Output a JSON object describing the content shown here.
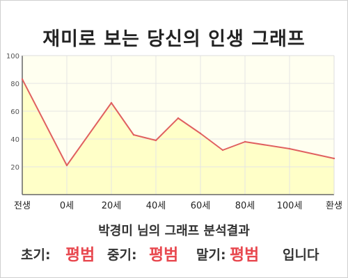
{
  "title": "재미로 보는 당신의 인생 그래프",
  "summary": "박경미 님의 그래프 분석결과",
  "results": {
    "early_label": "초기:",
    "early_value": "평범",
    "middle_label": "중기:",
    "middle_value": "평범",
    "late_label": "말기:",
    "late_value": "평범",
    "suffix": "입니다"
  },
  "chart_data": {
    "type": "area",
    "title": "재미로 보는 당신의 인생 그래프",
    "xlabel": "",
    "ylabel": "",
    "ylim": [
      0,
      100
    ],
    "yticks": [
      20,
      40,
      60,
      80,
      100
    ],
    "xticks": [
      "전생",
      "0세",
      "20세",
      "40세",
      "60세",
      "80세",
      "100세",
      "환생"
    ],
    "grid": true,
    "series": [
      {
        "values": [
          {
            "x": "전생",
            "y": 83
          },
          {
            "x": "0세",
            "y": 21
          },
          {
            "x": "20세",
            "y": 66
          },
          {
            "x": "30세",
            "y": 43
          },
          {
            "x": "40세",
            "y": 39
          },
          {
            "x": "50세",
            "y": 55
          },
          {
            "x": "60세",
            "y": 44
          },
          {
            "x": "70세",
            "y": 32
          },
          {
            "x": "80세",
            "y": 38
          },
          {
            "x": "100세",
            "y": 33
          },
          {
            "x": "환생",
            "y": 26
          }
        ]
      }
    ],
    "colors": {
      "line": "#e06060",
      "fill": "#ffffc8",
      "grid": "#e4e4e4"
    }
  }
}
